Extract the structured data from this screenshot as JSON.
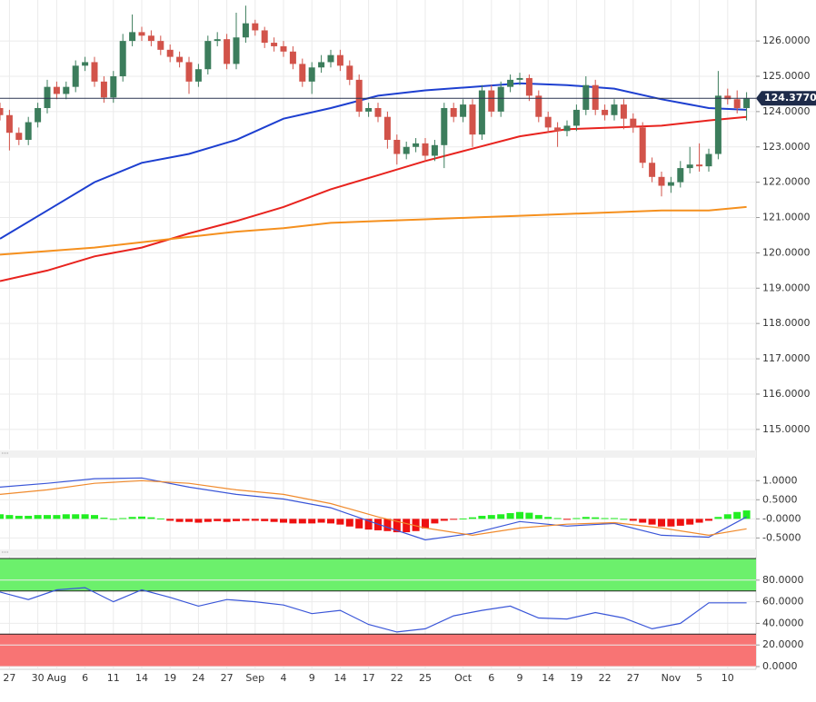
{
  "chart_data": [
    {
      "type": "candlestick",
      "up_color": "#3c7d5c",
      "down_color": "#d2534a",
      "xlim": [
        0,
        80
      ],
      "ylim": [
        114.43,
        127.16
      ],
      "yticks": [
        {
          "value": 115,
          "label": "115.0000"
        },
        {
          "value": 116,
          "label": "116.0000"
        },
        {
          "value": 117,
          "label": "117.0000"
        },
        {
          "value": 118,
          "label": "118.0000"
        },
        {
          "value": 119,
          "label": "119.0000"
        },
        {
          "value": 120,
          "label": "120.0000"
        },
        {
          "value": 121,
          "label": "121.0000"
        },
        {
          "value": 122,
          "label": "122.0000"
        },
        {
          "value": 123,
          "label": "123.0000"
        },
        {
          "value": 124,
          "label": "124.0000"
        },
        {
          "value": 125,
          "label": "125.0000"
        },
        {
          "value": 126,
          "label": "126.0000"
        }
      ],
      "last_price": {
        "value": 124.377,
        "label": "124.3770"
      },
      "open": [
        124.1,
        123.9,
        123.4,
        123.2,
        123.7,
        124.1,
        124.7,
        124.5,
        124.7,
        125.3,
        125.4,
        124.85,
        124.4,
        125.0,
        126.0,
        126.25,
        126.15,
        126.0,
        125.75,
        125.55,
        125.4,
        124.85,
        125.2,
        126.0,
        126.05,
        125.35,
        126.1,
        126.5,
        126.3,
        125.95,
        125.85,
        125.7,
        125.35,
        124.85,
        125.25,
        125.4,
        125.6,
        125.3,
        124.9,
        124.0,
        124.1,
        123.85,
        123.2,
        122.8,
        123.0,
        123.1,
        122.75,
        123.05,
        124.1,
        123.85,
        124.2,
        123.35,
        124.6,
        124.0,
        124.7,
        124.9,
        124.95,
        124.45,
        123.85,
        123.55,
        123.45,
        123.6,
        124.05,
        124.75,
        124.05,
        123.9,
        124.2,
        123.8,
        123.55,
        122.55,
        122.15,
        121.9,
        122.0,
        122.4,
        122.5,
        122.45,
        122.8,
        124.45,
        124.35,
        124.1
      ],
      "high": [
        124.25,
        124.05,
        123.55,
        123.85,
        124.25,
        124.9,
        124.85,
        124.85,
        125.45,
        125.55,
        125.55,
        125.0,
        125.15,
        126.2,
        126.75,
        126.4,
        126.3,
        126.15,
        125.9,
        125.7,
        125.55,
        125.35,
        126.15,
        126.25,
        126.2,
        126.8,
        127.0,
        126.6,
        126.4,
        126.1,
        126.0,
        125.85,
        125.5,
        125.4,
        125.6,
        125.75,
        125.75,
        125.45,
        125.05,
        124.25,
        124.25,
        124.0,
        123.35,
        123.15,
        123.25,
        123.25,
        123.2,
        124.25,
        124.25,
        124.35,
        124.35,
        124.75,
        124.75,
        124.85,
        125.05,
        125.1,
        125.05,
        124.6,
        124.0,
        123.7,
        123.75,
        124.2,
        125.0,
        124.9,
        124.2,
        124.35,
        124.35,
        123.95,
        123.7,
        122.7,
        122.3,
        122.15,
        122.6,
        123.0,
        123.1,
        122.95,
        125.15,
        124.65,
        124.6,
        124.55
      ],
      "low": [
        123.75,
        122.9,
        123.05,
        123.05,
        123.55,
        123.95,
        124.35,
        124.35,
        124.55,
        125.15,
        124.7,
        124.25,
        124.25,
        124.85,
        125.85,
        126.0,
        125.85,
        125.6,
        125.4,
        125.25,
        124.5,
        124.7,
        125.05,
        125.85,
        125.2,
        125.2,
        125.95,
        126.15,
        125.8,
        125.7,
        125.55,
        125.2,
        124.7,
        124.5,
        125.1,
        125.25,
        125.15,
        124.75,
        123.85,
        123.85,
        123.7,
        122.95,
        122.5,
        122.65,
        122.85,
        122.6,
        122.6,
        122.4,
        123.7,
        123.7,
        123.0,
        123.2,
        123.85,
        123.85,
        124.55,
        124.75,
        124.3,
        123.7,
        123.4,
        123.0,
        123.3,
        123.45,
        123.9,
        123.9,
        123.75,
        123.75,
        123.5,
        123.4,
        122.4,
        122.0,
        121.6,
        121.7,
        121.85,
        122.25,
        122.3,
        122.3,
        122.65,
        124.2,
        123.95,
        123.75
      ],
      "close": [
        123.9,
        123.4,
        123.2,
        123.7,
        124.1,
        124.7,
        124.5,
        124.7,
        125.3,
        125.4,
        124.85,
        124.4,
        125.0,
        126.0,
        126.25,
        126.15,
        126.0,
        125.75,
        125.55,
        125.4,
        124.85,
        125.2,
        126.0,
        126.05,
        125.35,
        126.1,
        126.5,
        126.3,
        125.95,
        125.85,
        125.7,
        125.35,
        124.85,
        125.25,
        125.4,
        125.6,
        125.3,
        124.9,
        124.0,
        124.1,
        123.85,
        123.2,
        122.8,
        123.0,
        123.1,
        122.75,
        123.05,
        124.1,
        123.85,
        124.2,
        123.35,
        124.6,
        124.0,
        124.7,
        124.9,
        124.95,
        124.45,
        123.85,
        123.55,
        123.45,
        123.6,
        124.05,
        124.75,
        124.05,
        123.9,
        124.2,
        123.8,
        123.55,
        122.55,
        122.15,
        121.9,
        122.0,
        122.4,
        122.5,
        122.45,
        122.8,
        124.45,
        124.35,
        124.1,
        124.377
      ],
      "series": [
        {
          "color": "#1d3fd0",
          "x": [
            0,
            5,
            10,
            15,
            20,
            25,
            30,
            35,
            40,
            45,
            50,
            55,
            60,
            65,
            70,
            75,
            79
          ],
          "values": [
            120.4,
            121.2,
            122.0,
            122.55,
            122.8,
            123.2,
            123.8,
            124.1,
            124.45,
            124.6,
            124.7,
            124.8,
            124.75,
            124.65,
            124.35,
            124.1,
            124.05
          ]
        },
        {
          "color": "#e8231e",
          "x": [
            0,
            5,
            10,
            15,
            20,
            25,
            30,
            35,
            40,
            45,
            50,
            55,
            60,
            65,
            70,
            75,
            79
          ],
          "values": [
            119.2,
            119.5,
            119.9,
            120.15,
            120.55,
            120.9,
            121.3,
            121.8,
            122.2,
            122.6,
            122.95,
            123.3,
            123.5,
            123.55,
            123.6,
            123.75,
            123.85
          ]
        },
        {
          "color": "#f5901e",
          "x": [
            0,
            5,
            10,
            15,
            20,
            25,
            30,
            35,
            40,
            45,
            50,
            55,
            60,
            65,
            70,
            75,
            79
          ],
          "values": [
            119.95,
            120.05,
            120.15,
            120.3,
            120.45,
            120.6,
            120.7,
            120.85,
            120.9,
            120.95,
            121.0,
            121.05,
            121.1,
            121.15,
            121.2,
            121.2,
            121.3
          ]
        }
      ]
    },
    {
      "type": "macd",
      "xlim": [
        0,
        80
      ],
      "ylim": [
        -0.8,
        1.6
      ],
      "yticks": [
        {
          "value": -0.5,
          "label": "-0.5000"
        },
        {
          "value": 0,
          "label": "-0.0000"
        },
        {
          "value": 0.5,
          "label": "0.5000"
        },
        {
          "value": 1,
          "label": "1.0000"
        }
      ],
      "hist_up_color": "#22ee22",
      "hist_down_color": "#ee1111",
      "histogram": [
        0.12,
        0.1,
        0.08,
        0.08,
        0.1,
        0.1,
        0.1,
        0.12,
        0.12,
        0.12,
        0.1,
        0.03,
        0.0,
        0.02,
        0.05,
        0.06,
        0.04,
        0.01,
        -0.05,
        -0.08,
        -0.08,
        -0.1,
        -0.08,
        -0.06,
        -0.08,
        -0.06,
        -0.05,
        -0.05,
        -0.06,
        -0.08,
        -0.1,
        -0.12,
        -0.12,
        -0.12,
        -0.1,
        -0.12,
        -0.15,
        -0.2,
        -0.25,
        -0.28,
        -0.3,
        -0.32,
        -0.35,
        -0.35,
        -0.32,
        -0.25,
        -0.12,
        -0.05,
        -0.02,
        0.01,
        0.04,
        0.08,
        0.1,
        0.12,
        0.15,
        0.18,
        0.16,
        0.1,
        0.05,
        0.02,
        -0.02,
        0.02,
        0.05,
        0.04,
        0.02,
        0.02,
        0.0,
        -0.05,
        -0.1,
        -0.15,
        -0.2,
        -0.2,
        -0.18,
        -0.15,
        -0.1,
        -0.05,
        0.05,
        0.12,
        0.18,
        0.22
      ],
      "series": [
        {
          "color": "#3a56d8",
          "x": [
            0,
            5,
            10,
            15,
            20,
            25,
            30,
            35,
            40,
            45,
            50,
            55,
            60,
            65,
            70,
            75,
            79
          ],
          "values": [
            0.83,
            0.93,
            1.05,
            1.07,
            0.83,
            0.64,
            0.52,
            0.29,
            -0.14,
            -0.55,
            -0.38,
            -0.07,
            -0.19,
            -0.12,
            -0.43,
            -0.48,
            0.05
          ]
        },
        {
          "color": "#f08a2c",
          "x": [
            0,
            5,
            10,
            15,
            20,
            25,
            30,
            35,
            40,
            45,
            50,
            55,
            60,
            65,
            70,
            75,
            79
          ],
          "values": [
            0.64,
            0.76,
            0.93,
            1.0,
            0.93,
            0.76,
            0.64,
            0.4,
            0.05,
            -0.24,
            -0.43,
            -0.24,
            -0.14,
            -0.1,
            -0.24,
            -0.43,
            -0.26
          ]
        }
      ]
    },
    {
      "type": "rsi",
      "xlim": [
        0,
        80
      ],
      "ylim": [
        0,
        100
      ],
      "yticks": [
        {
          "value": 0,
          "label": "0.0000"
        },
        {
          "value": 20,
          "label": "20.0000"
        },
        {
          "value": 40,
          "label": "40.0000"
        },
        {
          "value": 60,
          "label": "60.0000"
        },
        {
          "value": 80,
          "label": "80.0000"
        }
      ],
      "bands": [
        {
          "from": 70,
          "to": 100,
          "color": "#6cf06c"
        },
        {
          "from": 0,
          "to": 30,
          "color": "#f87474"
        }
      ],
      "series": [
        {
          "color": "#3a56d8",
          "x": [
            0,
            3,
            6,
            9,
            12,
            15,
            18,
            21,
            24,
            27,
            30,
            33,
            36,
            39,
            42,
            45,
            48,
            51,
            54,
            57,
            60,
            63,
            66,
            69,
            72,
            75,
            79
          ],
          "values": [
            69,
            62,
            71,
            73,
            60,
            71,
            64,
            56,
            62,
            60,
            57,
            49,
            52,
            39,
            32,
            35,
            47,
            52,
            56,
            45,
            44,
            50,
            45,
            35,
            40,
            59,
            59
          ]
        }
      ],
      "xticks": [
        {
          "value": 1,
          "label": "27"
        },
        {
          "value": 4,
          "label": "30"
        },
        {
          "value": 6,
          "label": "Aug"
        },
        {
          "value": 9,
          "label": "6"
        },
        {
          "value": 12,
          "label": "11"
        },
        {
          "value": 15,
          "label": "14"
        },
        {
          "value": 18,
          "label": "19"
        },
        {
          "value": 21,
          "label": "24"
        },
        {
          "value": 24,
          "label": "27"
        },
        {
          "value": 27,
          "label": "Sep"
        },
        {
          "value": 30,
          "label": "4"
        },
        {
          "value": 33,
          "label": "9"
        },
        {
          "value": 36,
          "label": "14"
        },
        {
          "value": 39,
          "label": "17"
        },
        {
          "value": 42,
          "label": "22"
        },
        {
          "value": 45,
          "label": "25"
        },
        {
          "value": 49,
          "label": "Oct"
        },
        {
          "value": 52,
          "label": "6"
        },
        {
          "value": 55,
          "label": "9"
        },
        {
          "value": 58,
          "label": "14"
        },
        {
          "value": 61,
          "label": "19"
        },
        {
          "value": 64,
          "label": "22"
        },
        {
          "value": 67,
          "label": "27"
        },
        {
          "value": 71,
          "label": "Nov"
        },
        {
          "value": 74,
          "label": "5"
        },
        {
          "value": 77,
          "label": "10"
        }
      ]
    }
  ]
}
